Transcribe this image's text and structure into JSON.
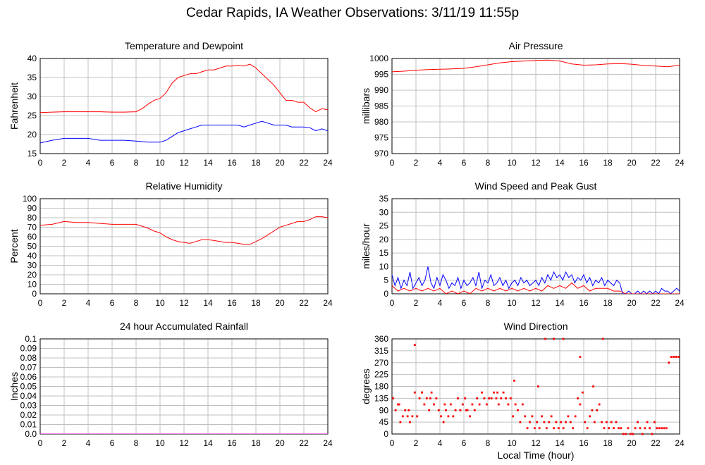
{
  "page": {
    "title": "Cedar Rapids, IA Weather Observations: 3/11/19 11:55p",
    "shared_xlabel": "Local Time (hour)"
  },
  "chart_data": [
    {
      "id": "temp",
      "type": "line",
      "title": "Temperature and Dewpoint",
      "ylabel": "Fahrenheit",
      "xlabel": "",
      "xlim": [
        0,
        24
      ],
      "ylim": [
        15,
        40
      ],
      "xticks": [
        0,
        2,
        4,
        6,
        8,
        10,
        12,
        14,
        16,
        18,
        20,
        22,
        24
      ],
      "yticks": [
        15,
        20,
        25,
        30,
        35,
        40
      ],
      "grid": true,
      "series": [
        {
          "color": "#ff0000",
          "x": [
            0,
            1,
            2,
            3,
            4,
            5,
            6,
            7,
            8,
            8.5,
            9,
            9.5,
            10,
            10.5,
            11,
            11.5,
            12,
            12.5,
            13,
            13.5,
            14,
            14.5,
            15,
            15.5,
            16,
            16.5,
            17,
            17.5,
            18,
            18.5,
            19,
            19.5,
            20,
            20.5,
            21,
            21.5,
            22,
            22.5,
            23,
            23.5,
            24
          ],
          "y": [
            25.8,
            25.9,
            26.0,
            26.0,
            26.0,
            26.0,
            25.9,
            25.9,
            26.0,
            26.8,
            28.0,
            29.0,
            29.5,
            31.0,
            33.5,
            35.0,
            35.5,
            36.0,
            36.0,
            36.5,
            37.0,
            37.0,
            37.5,
            38.0,
            38.0,
            38.2,
            38.0,
            38.5,
            37.5,
            36.0,
            34.5,
            33.0,
            31.0,
            29.0,
            29.0,
            28.5,
            28.5,
            27.0,
            26.0,
            26.8,
            26.5
          ]
        },
        {
          "color": "#0000ff",
          "x": [
            0,
            1,
            2,
            3,
            4,
            5,
            6,
            7,
            8,
            9,
            10,
            10.5,
            11,
            11.5,
            12,
            12.5,
            13,
            13.5,
            14,
            14.5,
            15,
            15.5,
            16,
            16.5,
            17,
            17.5,
            18,
            18.5,
            19,
            19.5,
            20,
            20.5,
            21,
            21.5,
            22,
            22.5,
            23,
            23.5,
            24
          ],
          "y": [
            17.8,
            18.5,
            19.0,
            19.0,
            19.0,
            18.5,
            18.5,
            18.5,
            18.3,
            18.0,
            18.0,
            18.5,
            19.5,
            20.5,
            21.0,
            21.5,
            22.0,
            22.5,
            22.5,
            22.5,
            22.5,
            22.5,
            22.5,
            22.5,
            22.0,
            22.5,
            23.0,
            23.5,
            23.0,
            22.5,
            22.5,
            22.5,
            22.0,
            22.0,
            22.0,
            21.8,
            21.0,
            21.5,
            21.0
          ]
        }
      ]
    },
    {
      "id": "pressure",
      "type": "line",
      "title": "Air Pressure",
      "ylabel": "millibars",
      "xlabel": "",
      "xlim": [
        0,
        24
      ],
      "ylim": [
        970,
        1000
      ],
      "xticks": [
        0,
        2,
        4,
        6,
        8,
        10,
        12,
        14,
        16,
        18,
        20,
        22,
        24
      ],
      "yticks": [
        970,
        975,
        980,
        985,
        990,
        995,
        1000
      ],
      "grid": true,
      "series": [
        {
          "color": "#ff0000",
          "x": [
            0,
            1,
            2,
            3,
            4,
            5,
            6,
            7,
            8,
            9,
            10,
            11,
            12,
            13,
            14,
            15,
            16,
            17,
            18,
            19,
            20,
            21,
            22,
            23,
            24
          ],
          "y": [
            995.8,
            996.0,
            996.3,
            996.5,
            996.6,
            996.7,
            996.9,
            997.4,
            998.0,
            998.6,
            999.0,
            999.2,
            999.4,
            999.5,
            999.2,
            998.3,
            997.9,
            998.0,
            998.3,
            998.4,
            998.2,
            997.8,
            997.6,
            997.4,
            997.9
          ]
        }
      ]
    },
    {
      "id": "humidity",
      "type": "line",
      "title": "Relative Humidity",
      "ylabel": "Percent",
      "xlabel": "",
      "xlim": [
        0,
        24
      ],
      "ylim": [
        0,
        100
      ],
      "xticks": [
        0,
        2,
        4,
        6,
        8,
        10,
        12,
        14,
        16,
        18,
        20,
        22,
        24
      ],
      "yticks": [
        0,
        10,
        20,
        30,
        40,
        50,
        60,
        70,
        80,
        90,
        100
      ],
      "grid": true,
      "series": [
        {
          "color": "#ff0000",
          "x": [
            0,
            1,
            2,
            3,
            4,
            5,
            6,
            7,
            8,
            8.5,
            9,
            9.5,
            10,
            10.5,
            11,
            11.5,
            12,
            12.5,
            13,
            13.5,
            14,
            14.5,
            15,
            15.5,
            16,
            16.5,
            17,
            17.5,
            18,
            18.5,
            19,
            19.5,
            20,
            20.5,
            21,
            21.5,
            22,
            22.5,
            23,
            23.5,
            24
          ],
          "y": [
            72,
            73,
            76,
            75,
            75,
            74,
            73,
            73,
            73,
            71,
            69,
            66,
            64,
            60,
            57,
            55,
            54,
            53,
            55,
            57,
            57,
            56,
            55,
            54,
            54,
            53,
            52,
            52,
            55,
            58,
            62,
            66,
            70,
            72,
            74,
            76,
            76,
            78,
            81,
            81,
            80
          ]
        }
      ]
    },
    {
      "id": "wind",
      "type": "line",
      "title": "Wind Speed and Peak Gust",
      "ylabel": "miles/hour",
      "xlabel": "",
      "xlim": [
        0,
        24
      ],
      "ylim": [
        0,
        35
      ],
      "xticks": [
        0,
        2,
        4,
        6,
        8,
        10,
        12,
        14,
        16,
        18,
        20,
        22,
        24
      ],
      "yticks": [
        0,
        5,
        10,
        15,
        20,
        25,
        30,
        35
      ],
      "grid": true,
      "series": [
        {
          "color": "#0000ff",
          "x": [
            0,
            0.25,
            0.5,
            0.75,
            1,
            1.25,
            1.5,
            1.75,
            2,
            2.25,
            2.5,
            2.75,
            3,
            3.25,
            3.5,
            3.75,
            4,
            4.25,
            4.5,
            4.75,
            5,
            5.25,
            5.5,
            5.75,
            6,
            6.25,
            6.5,
            6.75,
            7,
            7.25,
            7.5,
            7.75,
            8,
            8.25,
            8.5,
            8.75,
            9,
            9.25,
            9.5,
            9.75,
            10,
            10.25,
            10.5,
            10.75,
            11,
            11.25,
            11.5,
            11.75,
            12,
            12.25,
            12.5,
            12.75,
            13,
            13.25,
            13.5,
            13.75,
            14,
            14.25,
            14.5,
            14.75,
            15,
            15.25,
            15.5,
            15.75,
            16,
            16.25,
            16.5,
            16.75,
            17,
            17.25,
            17.5,
            17.75,
            18,
            18.25,
            18.5,
            18.75,
            19,
            19.25,
            19.5,
            19.75,
            20,
            20.25,
            20.5,
            20.75,
            21,
            21.25,
            21.5,
            21.75,
            22,
            22.25,
            22.5,
            22.75,
            23,
            23.25,
            23.5,
            23.75,
            24
          ],
          "y": [
            7,
            3,
            6,
            2,
            5,
            3,
            8,
            2,
            4,
            6,
            3,
            5,
            10,
            4,
            2,
            6,
            3,
            7,
            5,
            2,
            4,
            3,
            6,
            2,
            5,
            3,
            4,
            6,
            3,
            8,
            2,
            5,
            4,
            7,
            3,
            4,
            6,
            3,
            5,
            2,
            4,
            5,
            3,
            6,
            4,
            5,
            3,
            4,
            5,
            3,
            6,
            4,
            7,
            5,
            8,
            6,
            7,
            5,
            8,
            6,
            7,
            4,
            6,
            5,
            7,
            4,
            6,
            3,
            5,
            4,
            6,
            3,
            5,
            4,
            3,
            5,
            4,
            0,
            0,
            1,
            0,
            0,
            1,
            0,
            1,
            0,
            1,
            0,
            1,
            0,
            2,
            1,
            1,
            0,
            1,
            2,
            1
          ]
        },
        {
          "color": "#ff0000",
          "x": [
            0,
            0.5,
            1,
            1.5,
            2,
            2.5,
            3,
            3.5,
            4,
            4.5,
            5,
            5.5,
            6,
            6.5,
            7,
            7.5,
            8,
            8.5,
            9,
            9.5,
            10,
            10.5,
            11,
            11.5,
            12,
            12.5,
            13,
            13.5,
            14,
            14.5,
            15,
            15.5,
            16,
            16.5,
            17,
            17.5,
            18,
            18.5,
            19,
            19.5,
            20,
            20.5,
            21,
            21.5,
            22,
            22.5,
            23,
            23.5,
            24
          ],
          "y": [
            3,
            1,
            2,
            1,
            2,
            1,
            2,
            1,
            2,
            0,
            1,
            0,
            1,
            0,
            2,
            1,
            2,
            1,
            2,
            1,
            2,
            1,
            2,
            1,
            2,
            1,
            3,
            2,
            3,
            2,
            4,
            2,
            3,
            1,
            2,
            2,
            2,
            1,
            1,
            0,
            0,
            0,
            0,
            0,
            0,
            0,
            0,
            0,
            0
          ]
        }
      ]
    },
    {
      "id": "rain",
      "type": "line",
      "title": "24 hour Accumulated Rainfall",
      "ylabel": "Inches",
      "xlabel": "",
      "xlim": [
        0,
        24
      ],
      "ylim": [
        0,
        0.1
      ],
      "xticks": [
        0,
        2,
        4,
        6,
        8,
        10,
        12,
        14,
        16,
        18,
        20,
        22,
        24
      ],
      "yticks": [
        "0.0",
        "0.01",
        "0.02",
        "0.03",
        "0.04",
        "0.05",
        "0.06",
        "0.07",
        "0.08",
        "0.09",
        "0.1"
      ],
      "grid": true,
      "series": [
        {
          "color": "#ff00ff",
          "x": [
            0,
            24
          ],
          "y": [
            0,
            0
          ]
        }
      ]
    },
    {
      "id": "direction",
      "type": "scatter",
      "title": "Wind Direction",
      "ylabel": "degrees",
      "xlabel": "Local Time (hour)",
      "xlim": [
        0,
        24
      ],
      "ylim": [
        0,
        360
      ],
      "xticks": [
        0,
        2,
        4,
        6,
        8,
        10,
        12,
        14,
        16,
        18,
        20,
        22,
        24
      ],
      "yticks": [
        0,
        45,
        90,
        135,
        180,
        225,
        270,
        315,
        360
      ],
      "grid": true,
      "series": [
        {
          "color": "#ff0000",
          "x": [
            0.1,
            0.3,
            0.5,
            0.7,
            0.9,
            1.1,
            1.3,
            1.5,
            1.7,
            1.9,
            2.1,
            2.3,
            2.5,
            2.7,
            2.9,
            3.1,
            3.3,
            3.5,
            3.7,
            3.9,
            4.1,
            4.3,
            4.5,
            4.7,
            4.9,
            5.1,
            5.3,
            5.5,
            5.7,
            5.9,
            6.1,
            6.3,
            6.5,
            6.7,
            6.9,
            7.1,
            7.3,
            7.5,
            7.7,
            7.9,
            8.1,
            8.3,
            8.5,
            8.7,
            8.9,
            9.1,
            9.3,
            9.5,
            9.7,
            9.9,
            10.1,
            10.3,
            10.5,
            10.7,
            10.9,
            11.1,
            11.3,
            11.5,
            11.7,
            11.9,
            12.1,
            12.3,
            12.5,
            12.7,
            12.9,
            13.1,
            13.3,
            13.5,
            13.7,
            13.9,
            14.1,
            14.3,
            14.5,
            14.7,
            14.9,
            15.1,
            15.3,
            15.5,
            15.7,
            15.9,
            16.1,
            16.3,
            16.5,
            16.7,
            16.9,
            17.1,
            17.3,
            17.5,
            17.7,
            17.9,
            18.1,
            18.3,
            18.5,
            18.7,
            18.9,
            19.1,
            19.3,
            19.5,
            19.7,
            19.9,
            20.1,
            20.3,
            20.5,
            20.7,
            20.9,
            21.1,
            21.3,
            21.5,
            21.7,
            21.9,
            22.1,
            22.3,
            22.5,
            22.7,
            22.9,
            23.1,
            23.3,
            23.5,
            23.7,
            23.9,
            1.9,
            2.5,
            12.8,
            13.5,
            14.3,
            15.7,
            17.6,
            0.6,
            1.4,
            3.2,
            4.4,
            6.2,
            8.8,
            10.2,
            12.2,
            16.8
          ],
          "y": [
            135,
            90,
            112,
            45,
            67,
            90,
            67,
            45,
            67,
            157,
            67,
            135,
            157,
            112,
            135,
            90,
            157,
            112,
            135,
            90,
            67,
            45,
            90,
            67,
            112,
            67,
            90,
            135,
            90,
            112,
            135,
            90,
            67,
            112,
            90,
            135,
            112,
            157,
            135,
            112,
            135,
            135,
            157,
            135,
            112,
            135,
            157,
            135,
            112,
            135,
            67,
            112,
            90,
            45,
            112,
            67,
            22,
            45,
            67,
            22,
            45,
            22,
            67,
            45,
            22,
            45,
            67,
            22,
            45,
            22,
            45,
            22,
            45,
            67,
            45,
            22,
            67,
            135,
            112,
            157,
            45,
            22,
            67,
            90,
            45,
            90,
            112,
            45,
            22,
            45,
            22,
            45,
            22,
            45,
            22,
            22,
            0,
            0,
            22,
            0,
            0,
            22,
            45,
            22,
            0,
            22,
            45,
            22,
            0,
            45,
            22,
            22,
            22,
            22,
            22,
            270,
            292,
            292,
            292,
            292,
            337,
            157,
            360,
            360,
            360,
            292,
            360,
            112,
            90,
            135,
            112,
            90,
            157,
            202,
            180,
            180
          ]
        }
      ]
    }
  ]
}
